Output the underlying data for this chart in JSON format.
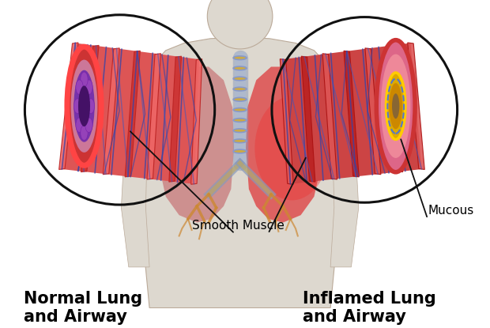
{
  "bg_color": "#ffffff",
  "label_left": "Normal Lung\nand Airway",
  "label_right": "Inflamed Lung\nand Airway",
  "label_smooth_muscle": "Smooth Muscle",
  "label_mucous": "Mucous",
  "label_fontsize": 15,
  "annotation_fontsize": 11,
  "body_color": "#ddd8cf",
  "lung_left_color": "#cc8888",
  "lung_right_color": "#dd4444",
  "trachea_color": "#8899cc",
  "bronchi_color": "#ccaa55",
  "tube_outer_color": "#dd4444",
  "tube_ring_color": "#cc3333",
  "tube_inner_color": "#cc8899",
  "tube_purple_color": "#884499",
  "tube_open_color": "#663388",
  "vein_color": "#3344aa",
  "inflamed_wall_color": "#dd8899",
  "mucous_yellow": "#ddaa00",
  "mucous_gold": "#cc8800",
  "mucous_opening": "#996633",
  "circle_color": "#111111",
  "annotation_line_color": "#111111"
}
